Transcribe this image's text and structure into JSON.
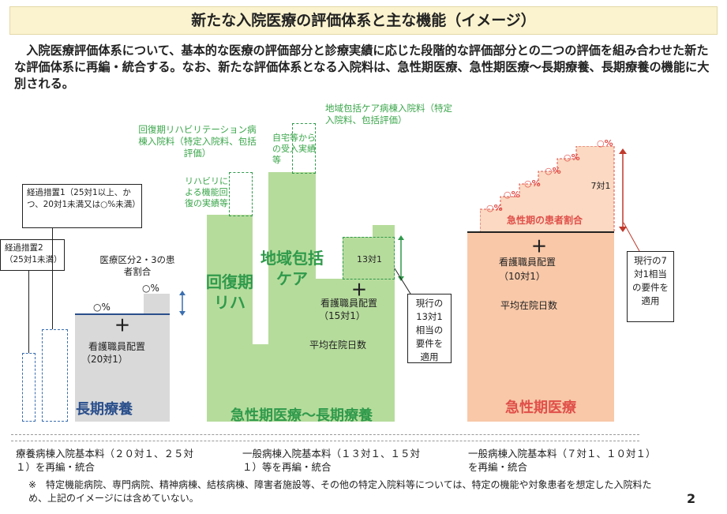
{
  "title": "新たな入院医療の評価体系と主な機能（イメージ）",
  "intro": "入院医療評価体系について、基本的な医療の評価部分と診療実績に応じた段階的な評価部分との二つの評価を組み合わせた新たな評価体系に再編・統合する。なお、新たな評価体系となる入院料は、急性期医療、急性期医療～長期療養、長期療養の機能に大別される。",
  "colors": {
    "title_bg": "#fbf3cf",
    "green_bar": "#b6dc9c",
    "grey_bar": "#d9d9d9",
    "peach": "#f8c8a8",
    "green_text": "#3aa64a",
    "red_text": "#e0504a",
    "blue_dashed": "#3a6fb0"
  },
  "longterm": {
    "transition1": "経過措置1（25対1以上、かつ、20対1未満又は○%未満）",
    "transition2": "経過措置2（25対1未満）",
    "patient_ratio": "医療区分2・3の患者割合",
    "pct_high": "○%",
    "pct_low": "○%",
    "plus": "＋",
    "nurse": "看護職員配置",
    "nurse_ratio": "（20対1）",
    "label": "長期療養"
  },
  "mid": {
    "rehab_ward": "回復期リハビリテーション病棟入院料（特定入院料、包括評価）",
    "rehab_recovery": "リハビリによる機能回復の実績等",
    "rehab_block": "回復期リハ",
    "community_ward": "地域包括ケア病棟入院料（特定入院料、包括評価）",
    "home_acceptance": "自宅等からの受入実績等",
    "community_block": "地域包括ケア",
    "ratio13": "13対1",
    "plus": "＋",
    "nurse": "看護職員配置",
    "nurse_ratio": "（15対1）",
    "avg_days": "平均在院日数",
    "current13": "現行の13対1相当の要件を適用",
    "label": "急性期医療～長期療養"
  },
  "acute": {
    "pcts": [
      "○%",
      "○%",
      "○%",
      "○%",
      "○%",
      "○%"
    ],
    "ratio7": "7対1",
    "patient_ratio": "急性期の患者割合",
    "plus": "＋",
    "nurse": "看護職員配置",
    "nurse_ratio": "（10対1）",
    "avg_days": "平均在院日数",
    "current7": "現行の7対1相当の要件を適用",
    "label": "急性期医療"
  },
  "bottom": {
    "col1": "療養病棟入院基本料（２０対１、２５対１）を再編・統合",
    "col2": "一般病棟入院基本料（１３対１、１５対１）等を再編・統合",
    "col3": "一般病棟入院基本料（７対１、１０対１）を再編・統合",
    "note": "※　特定機能病院、専門病院、精神病棟、結核病棟、障害者施設等、その他の特定入院料等については、特定の機能や対象患者を想定した入院料ため、上記のイメージには含めていない。",
    "page": "2"
  }
}
